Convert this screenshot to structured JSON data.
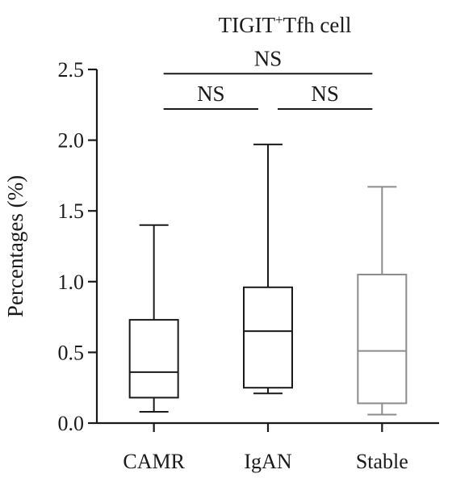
{
  "chart_data": {
    "type": "box",
    "title_main": "TIGIT",
    "title_sup": "+",
    "title_rest": "Tfh cell",
    "ylabel": "Percentages (%)",
    "xlabel": "",
    "ylim": [
      0,
      2.5
    ],
    "yticks": [
      "0.0",
      "0.5",
      "1.0",
      "1.5",
      "2.0",
      "2.5"
    ],
    "categories": [
      "CAMR",
      "IgAN",
      "Stable"
    ],
    "series": [
      {
        "category": "CAMR",
        "whisker_low": 0.08,
        "q1": 0.18,
        "median": 0.36,
        "q3": 0.73,
        "whisker_high": 1.4,
        "color": "#1a1a1a"
      },
      {
        "category": "IgAN",
        "whisker_low": 0.21,
        "q1": 0.25,
        "median": 0.65,
        "q3": 0.96,
        "whisker_high": 1.97,
        "color": "#1a1a1a"
      },
      {
        "category": "Stable",
        "whisker_low": 0.06,
        "q1": 0.14,
        "median": 0.51,
        "q3": 1.05,
        "whisker_high": 1.67,
        "color": "#8c8c8c"
      }
    ],
    "comparisons": [
      {
        "groups": [
          "CAMR",
          "IgAN"
        ],
        "label": "NS",
        "level": 2.22
      },
      {
        "groups": [
          "IgAN",
          "Stable"
        ],
        "label": "NS",
        "level": 2.22
      },
      {
        "groups": [
          "CAMR",
          "Stable"
        ],
        "label": "NS",
        "level": 2.47
      }
    ],
    "grid": false,
    "legend": "none"
  }
}
